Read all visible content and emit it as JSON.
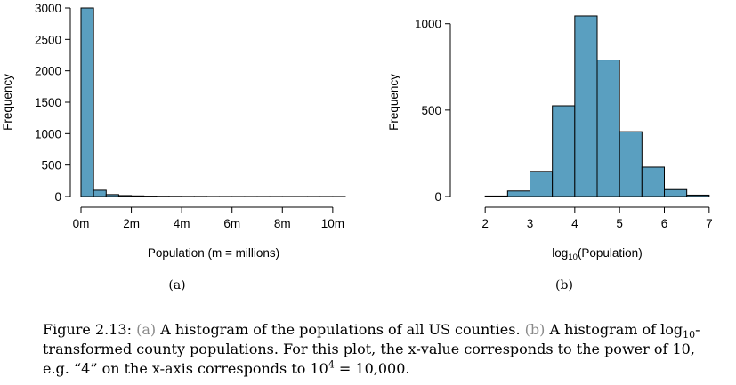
{
  "chart_data": [
    {
      "type": "bar",
      "subfigure_label": "(a)",
      "xlabel": "Population (m = millions)",
      "ylabel": "Frequency",
      "bin_edges": [
        0,
        0.5,
        1,
        1.5,
        2,
        2.5,
        3,
        3.5,
        4,
        4.5,
        5,
        5.5,
        6,
        6.5,
        7,
        7.5,
        8,
        8.5,
        9,
        9.5,
        10,
        10.5
      ],
      "values": [
        3000,
        100,
        30,
        15,
        10,
        6,
        4,
        3,
        2,
        2,
        1,
        1,
        1,
        1,
        1,
        1,
        1,
        1,
        1,
        1,
        1
      ],
      "xlim": [
        0,
        10.5
      ],
      "ylim": [
        0,
        3000
      ],
      "xticks": [
        0,
        2,
        4,
        6,
        8,
        10
      ],
      "xtick_labels": [
        "0m",
        "2m",
        "4m",
        "6m",
        "8m",
        "10m"
      ],
      "yticks": [
        0,
        500,
        1000,
        1500,
        2000,
        2500,
        3000
      ],
      "ytick_labels": [
        "0",
        "500",
        "1000",
        "1500",
        "2000",
        "2500",
        "3000"
      ],
      "bar_color": "#5a9fc0",
      "grid": false
    },
    {
      "type": "bar",
      "subfigure_label": "(b)",
      "xlabel_main": "log",
      "xlabel_sub": "10",
      "xlabel_tail": "(Population)",
      "ylabel": "Frequency",
      "bin_edges": [
        1.5,
        2,
        2.5,
        3,
        3.5,
        4,
        4.5,
        5,
        5.5,
        6,
        6.5,
        7,
        7.5
      ],
      "values": [
        0,
        3,
        32,
        145,
        525,
        1045,
        790,
        375,
        170,
        40,
        8,
        0
      ],
      "xlim": [
        1.5,
        7.5
      ],
      "ylim": [
        0,
        1050
      ],
      "xticks": [
        2,
        3,
        4,
        5,
        6,
        7
      ],
      "xtick_labels": [
        "2",
        "3",
        "4",
        "5",
        "6",
        "7"
      ],
      "yticks": [
        0,
        500,
        1000
      ],
      "ytick_labels": [
        "0",
        "500",
        "1000"
      ],
      "bar_color": "#5a9fc0",
      "grid": false
    }
  ],
  "caption": {
    "figure_label": "Figure 2.13:",
    "part_a_label": "(a)",
    "part_a_text": "A histogram of the populations of all US counties.",
    "part_b_label": "(b)",
    "part_b_text_1": "A histogram of log",
    "part_b_sub": "10",
    "part_b_text_2": "-transformed county populations. For this plot, the x-value corresponds to the power of 10, e.g. “4” on the x-axis corresponds to 10",
    "part_b_sup": "4",
    "part_b_text_3": " = 10,000."
  }
}
